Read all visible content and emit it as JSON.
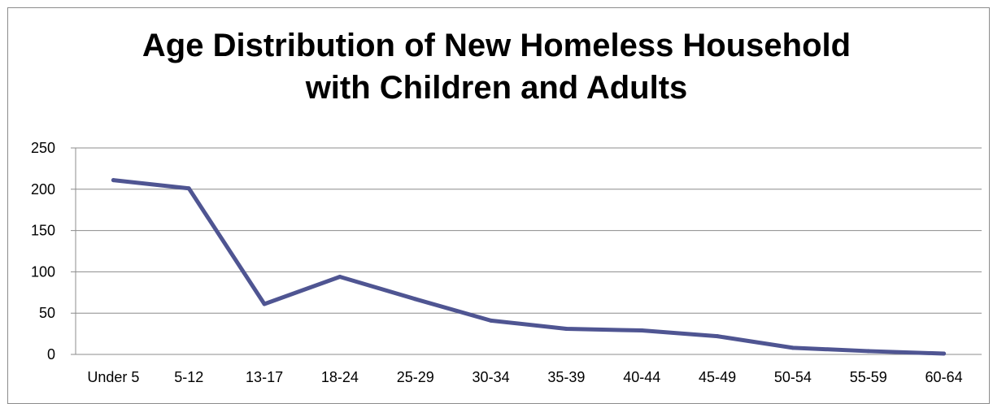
{
  "chart_data": {
    "type": "line",
    "title_lines": [
      "Age Distribution of New Homeless Household",
      "with Children and Adults"
    ],
    "xlabel": "",
    "ylabel": "",
    "categories": [
      "Under 5",
      "5-12",
      "13-17",
      "18-24",
      "25-29",
      "30-34",
      "35-39",
      "40-44",
      "45-49",
      "50-54",
      "55-59",
      "60-64"
    ],
    "series": [
      {
        "values": [
          211,
          201,
          61,
          94,
          67,
          41,
          31,
          29,
          22,
          8,
          4,
          1
        ]
      }
    ],
    "ylim": [
      0,
      250
    ],
    "yticks": [
      0,
      50,
      100,
      150,
      200,
      250
    ],
    "grid": true,
    "legend": "none",
    "line_color": "#4f5592"
  }
}
